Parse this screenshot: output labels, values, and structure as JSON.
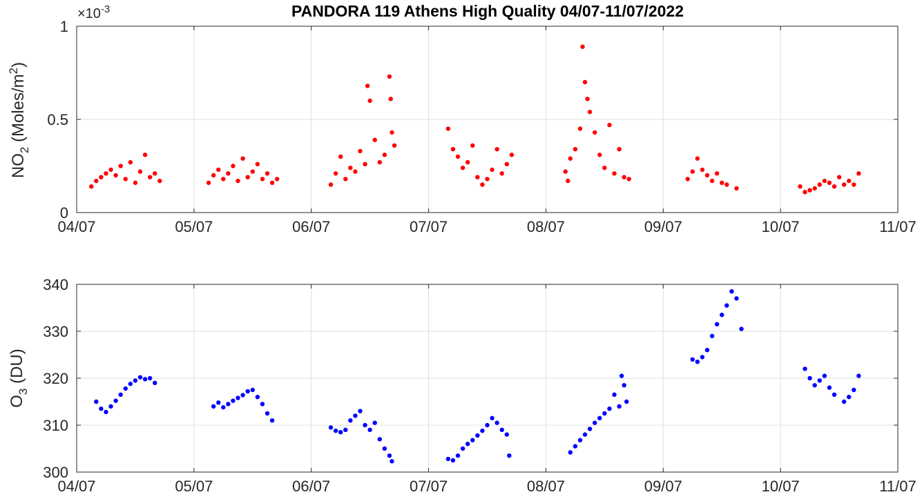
{
  "title": "PANDORA 119 Athens High Quality 04/07-11/07/2022",
  "chart_data": [
    {
      "type": "scatter",
      "ylabel": "NO2 (Moles/m2)",
      "ylabel_parts": {
        "base": "NO",
        "sub": "2",
        "rest": " (Moles/m",
        "sup": "2",
        "end": ")"
      },
      "multiplier": {
        "prefix": "×10",
        "exponent": "-3"
      },
      "xlim": [
        "2022-07-04",
        "2022-07-11"
      ],
      "ylim": [
        0,
        0.001
      ],
      "x_tick_labels": [
        "04/07",
        "05/07",
        "06/07",
        "07/07",
        "08/07",
        "09/07",
        "10/07",
        "11/07"
      ],
      "y_ticks": [
        0,
        0.0005,
        0.001
      ],
      "y_tick_labels": [
        "0",
        "0.5",
        "1"
      ],
      "grid": true,
      "series": [
        {
          "color": "#ff0000",
          "points": [
            [
              "2022-07-04 03:00",
              0.00014
            ],
            [
              "2022-07-04 04:00",
              0.00017
            ],
            [
              "2022-07-04 05:00",
              0.00019
            ],
            [
              "2022-07-04 06:00",
              0.00021
            ],
            [
              "2022-07-04 07:00",
              0.00023
            ],
            [
              "2022-07-04 08:00",
              0.0002
            ],
            [
              "2022-07-04 09:00",
              0.00025
            ],
            [
              "2022-07-04 10:00",
              0.00018
            ],
            [
              "2022-07-04 11:00",
              0.00027
            ],
            [
              "2022-07-04 12:00",
              0.00016
            ],
            [
              "2022-07-04 13:00",
              0.00022
            ],
            [
              "2022-07-04 14:00",
              0.00031
            ],
            [
              "2022-07-04 15:00",
              0.00019
            ],
            [
              "2022-07-04 16:00",
              0.00021
            ],
            [
              "2022-07-04 17:00",
              0.00017
            ],
            [
              "2022-07-05 03:00",
              0.00016
            ],
            [
              "2022-07-05 04:00",
              0.0002
            ],
            [
              "2022-07-05 05:00",
              0.00023
            ],
            [
              "2022-07-05 06:00",
              0.00018
            ],
            [
              "2022-07-05 07:00",
              0.00021
            ],
            [
              "2022-07-05 08:00",
              0.00025
            ],
            [
              "2022-07-05 09:00",
              0.00017
            ],
            [
              "2022-07-05 10:00",
              0.00029
            ],
            [
              "2022-07-05 11:00",
              0.00019
            ],
            [
              "2022-07-05 12:00",
              0.00022
            ],
            [
              "2022-07-05 13:00",
              0.00026
            ],
            [
              "2022-07-05 14:00",
              0.00018
            ],
            [
              "2022-07-05 15:00",
              0.00021
            ],
            [
              "2022-07-05 16:00",
              0.00016
            ],
            [
              "2022-07-05 17:00",
              0.00018
            ],
            [
              "2022-07-06 04:00",
              0.00015
            ],
            [
              "2022-07-06 05:00",
              0.00021
            ],
            [
              "2022-07-06 06:00",
              0.0003
            ],
            [
              "2022-07-06 07:00",
              0.00018
            ],
            [
              "2022-07-06 08:00",
              0.00024
            ],
            [
              "2022-07-06 09:00",
              0.00022
            ],
            [
              "2022-07-06 10:00",
              0.00033
            ],
            [
              "2022-07-06 11:00",
              0.00026
            ],
            [
              "2022-07-06 11:30",
              0.00068
            ],
            [
              "2022-07-06 12:00",
              0.0006
            ],
            [
              "2022-07-06 13:00",
              0.00039
            ],
            [
              "2022-07-06 14:00",
              0.00027
            ],
            [
              "2022-07-06 15:00",
              0.00031
            ],
            [
              "2022-07-06 16:00",
              0.00073
            ],
            [
              "2022-07-06 16:15",
              0.00061
            ],
            [
              "2022-07-06 16:30",
              0.00043
            ],
            [
              "2022-07-06 17:00",
              0.00036
            ],
            [
              "2022-07-07 04:00",
              0.00045
            ],
            [
              "2022-07-07 05:00",
              0.00034
            ],
            [
              "2022-07-07 06:00",
              0.0003
            ],
            [
              "2022-07-07 07:00",
              0.00024
            ],
            [
              "2022-07-07 08:00",
              0.00027
            ],
            [
              "2022-07-07 09:00",
              0.00036
            ],
            [
              "2022-07-07 10:00",
              0.00019
            ],
            [
              "2022-07-07 11:00",
              0.00015
            ],
            [
              "2022-07-07 12:00",
              0.00018
            ],
            [
              "2022-07-07 13:00",
              0.00023
            ],
            [
              "2022-07-07 14:00",
              0.00034
            ],
            [
              "2022-07-07 15:00",
              0.00021
            ],
            [
              "2022-07-07 16:00",
              0.00026
            ],
            [
              "2022-07-07 17:00",
              0.00031
            ],
            [
              "2022-07-08 04:00",
              0.00022
            ],
            [
              "2022-07-08 04:30",
              0.00017
            ],
            [
              "2022-07-08 05:00",
              0.00029
            ],
            [
              "2022-07-08 06:00",
              0.00034
            ],
            [
              "2022-07-08 07:00",
              0.00045
            ],
            [
              "2022-07-08 07:30",
              0.00089
            ],
            [
              "2022-07-08 08:00",
              0.0007
            ],
            [
              "2022-07-08 08:30",
              0.00061
            ],
            [
              "2022-07-08 09:00",
              0.00054
            ],
            [
              "2022-07-08 10:00",
              0.00043
            ],
            [
              "2022-07-08 11:00",
              0.00031
            ],
            [
              "2022-07-08 12:00",
              0.00024
            ],
            [
              "2022-07-08 13:00",
              0.00047
            ],
            [
              "2022-07-08 14:00",
              0.00021
            ],
            [
              "2022-07-08 15:00",
              0.00034
            ],
            [
              "2022-07-08 16:00",
              0.00019
            ],
            [
              "2022-07-08 17:00",
              0.00018
            ],
            [
              "2022-07-09 05:00",
              0.00018
            ],
            [
              "2022-07-09 06:00",
              0.00022
            ],
            [
              "2022-07-09 07:00",
              0.00029
            ],
            [
              "2022-07-09 08:00",
              0.00023
            ],
            [
              "2022-07-09 09:00",
              0.0002
            ],
            [
              "2022-07-09 10:00",
              0.00017
            ],
            [
              "2022-07-09 11:00",
              0.00021
            ],
            [
              "2022-07-09 12:00",
              0.00016
            ],
            [
              "2022-07-09 13:00",
              0.00015
            ],
            [
              "2022-07-09 15:00",
              0.00013
            ],
            [
              "2022-07-10 04:00",
              0.00014
            ],
            [
              "2022-07-10 05:00",
              0.00011
            ],
            [
              "2022-07-10 06:00",
              0.00012
            ],
            [
              "2022-07-10 07:00",
              0.00013
            ],
            [
              "2022-07-10 08:00",
              0.00015
            ],
            [
              "2022-07-10 09:00",
              0.00017
            ],
            [
              "2022-07-10 10:00",
              0.00016
            ],
            [
              "2022-07-10 11:00",
              0.00014
            ],
            [
              "2022-07-10 12:00",
              0.00019
            ],
            [
              "2022-07-10 13:00",
              0.00015
            ],
            [
              "2022-07-10 14:00",
              0.00017
            ],
            [
              "2022-07-10 15:00",
              0.00015
            ],
            [
              "2022-07-10 16:00",
              0.00021
            ]
          ]
        }
      ]
    },
    {
      "type": "scatter",
      "ylabel": "O3 (DU)",
      "ylabel_parts": {
        "base": "O",
        "sub": "3",
        "rest": " (DU)",
        "sup": "",
        "end": ""
      },
      "xlim": [
        "2022-07-04",
        "2022-07-11"
      ],
      "ylim": [
        300,
        340
      ],
      "x_tick_labels": [
        "04/07",
        "05/07",
        "06/07",
        "07/07",
        "08/07",
        "09/07",
        "10/07",
        "11/07"
      ],
      "y_ticks": [
        300,
        310,
        320,
        330,
        340
      ],
      "y_tick_labels": [
        "300",
        "310",
        "320",
        "330",
        "340"
      ],
      "grid": true,
      "series": [
        {
          "color": "#0000ff",
          "points": [
            [
              "2022-07-04 04:00",
              315.0
            ],
            [
              "2022-07-04 05:00",
              313.5
            ],
            [
              "2022-07-04 06:00",
              312.8
            ],
            [
              "2022-07-04 07:00",
              314.0
            ],
            [
              "2022-07-04 08:00",
              315.2
            ],
            [
              "2022-07-04 09:00",
              316.5
            ],
            [
              "2022-07-04 10:00",
              317.8
            ],
            [
              "2022-07-04 11:00",
              318.8
            ],
            [
              "2022-07-04 12:00",
              319.5
            ],
            [
              "2022-07-04 13:00",
              320.2
            ],
            [
              "2022-07-04 14:00",
              319.8
            ],
            [
              "2022-07-04 15:00",
              320.0
            ],
            [
              "2022-07-04 16:00",
              319.0
            ],
            [
              "2022-07-05 04:00",
              314.0
            ],
            [
              "2022-07-05 05:00",
              314.8
            ],
            [
              "2022-07-05 06:00",
              313.8
            ],
            [
              "2022-07-05 07:00",
              314.5
            ],
            [
              "2022-07-05 08:00",
              315.2
            ],
            [
              "2022-07-05 09:00",
              315.8
            ],
            [
              "2022-07-05 10:00",
              316.4
            ],
            [
              "2022-07-05 11:00",
              317.2
            ],
            [
              "2022-07-05 12:00",
              317.5
            ],
            [
              "2022-07-05 13:00",
              316.0
            ],
            [
              "2022-07-05 14:00",
              314.5
            ],
            [
              "2022-07-05 15:00",
              312.5
            ],
            [
              "2022-07-05 16:00",
              311.0
            ],
            [
              "2022-07-06 04:00",
              309.5
            ],
            [
              "2022-07-06 05:00",
              308.8
            ],
            [
              "2022-07-06 06:00",
              308.5
            ],
            [
              "2022-07-06 07:00",
              309.0
            ],
            [
              "2022-07-06 08:00",
              311.0
            ],
            [
              "2022-07-06 09:00",
              312.0
            ],
            [
              "2022-07-06 10:00",
              313.0
            ],
            [
              "2022-07-06 11:00",
              310.0
            ],
            [
              "2022-07-06 12:00",
              309.0
            ],
            [
              "2022-07-06 13:00",
              310.5
            ],
            [
              "2022-07-06 14:00",
              307.0
            ],
            [
              "2022-07-06 15:00",
              305.0
            ],
            [
              "2022-07-06 16:00",
              303.5
            ],
            [
              "2022-07-06 16:30",
              302.3
            ],
            [
              "2022-07-07 04:00",
              302.8
            ],
            [
              "2022-07-07 05:00",
              302.5
            ],
            [
              "2022-07-07 06:00",
              303.5
            ],
            [
              "2022-07-07 07:00",
              305.0
            ],
            [
              "2022-07-07 08:00",
              306.0
            ],
            [
              "2022-07-07 09:00",
              306.8
            ],
            [
              "2022-07-07 10:00",
              307.8
            ],
            [
              "2022-07-07 11:00",
              308.8
            ],
            [
              "2022-07-07 12:00",
              310.0
            ],
            [
              "2022-07-07 13:00",
              311.5
            ],
            [
              "2022-07-07 14:00",
              310.5
            ],
            [
              "2022-07-07 15:00",
              309.0
            ],
            [
              "2022-07-07 16:00",
              308.0
            ],
            [
              "2022-07-07 16:30",
              303.5
            ],
            [
              "2022-07-08 05:00",
              304.2
            ],
            [
              "2022-07-08 06:00",
              305.5
            ],
            [
              "2022-07-08 07:00",
              306.8
            ],
            [
              "2022-07-08 08:00",
              308.0
            ],
            [
              "2022-07-08 09:00",
              309.2
            ],
            [
              "2022-07-08 10:00",
              310.5
            ],
            [
              "2022-07-08 11:00",
              311.5
            ],
            [
              "2022-07-08 12:00",
              312.5
            ],
            [
              "2022-07-08 13:00",
              313.5
            ],
            [
              "2022-07-08 14:00",
              316.5
            ],
            [
              "2022-07-08 15:00",
              314.0
            ],
            [
              "2022-07-08 15:30",
              320.5
            ],
            [
              "2022-07-08 16:00",
              318.5
            ],
            [
              "2022-07-08 16:30",
              315.0
            ],
            [
              "2022-07-09 06:00",
              324.0
            ],
            [
              "2022-07-09 07:00",
              323.5
            ],
            [
              "2022-07-09 08:00",
              324.5
            ],
            [
              "2022-07-09 09:00",
              326.0
            ],
            [
              "2022-07-09 10:00",
              329.0
            ],
            [
              "2022-07-09 11:00",
              331.5
            ],
            [
              "2022-07-09 12:00",
              333.5
            ],
            [
              "2022-07-09 13:00",
              335.5
            ],
            [
              "2022-07-09 14:00",
              338.5
            ],
            [
              "2022-07-09 15:00",
              337.0
            ],
            [
              "2022-07-09 16:00",
              330.5
            ],
            [
              "2022-07-10 05:00",
              322.0
            ],
            [
              "2022-07-10 06:00",
              320.0
            ],
            [
              "2022-07-10 07:00",
              318.5
            ],
            [
              "2022-07-10 08:00",
              319.5
            ],
            [
              "2022-07-10 09:00",
              320.5
            ],
            [
              "2022-07-10 10:00",
              318.0
            ],
            [
              "2022-07-10 11:00",
              316.5
            ],
            [
              "2022-07-10 13:00",
              315.0
            ],
            [
              "2022-07-10 14:00",
              316.0
            ],
            [
              "2022-07-10 15:00",
              317.5
            ],
            [
              "2022-07-10 16:00",
              320.5
            ]
          ]
        }
      ]
    }
  ]
}
